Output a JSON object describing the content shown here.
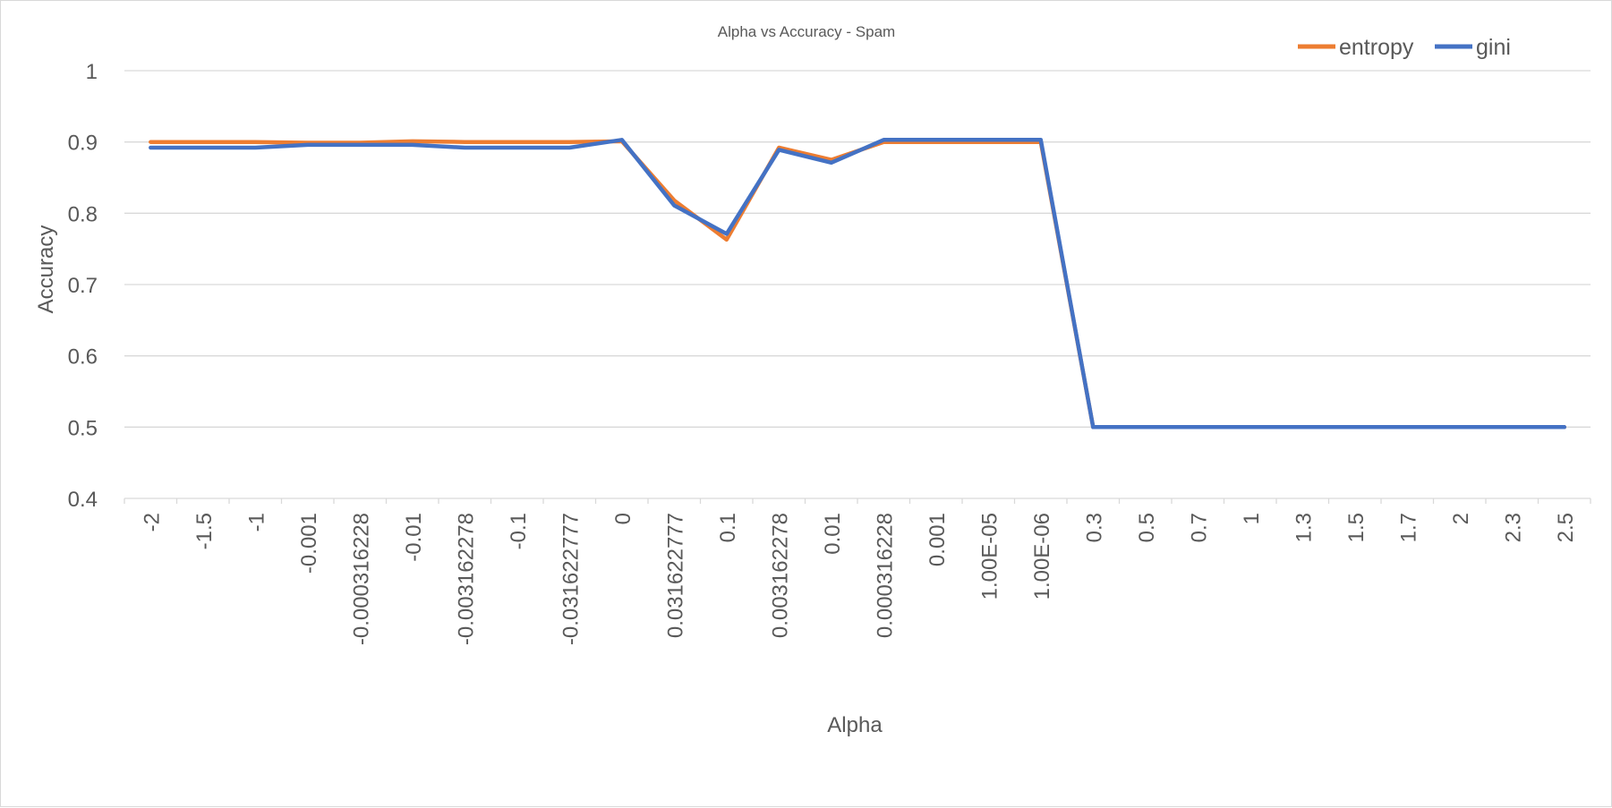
{
  "chart_data": {
    "type": "line",
    "title": "Alpha vs Accuracy - Spam",
    "xlabel": "Alpha",
    "ylabel": "Accuracy",
    "ylim": [
      0.4,
      1
    ],
    "yticks": [
      "0.4",
      "0.5",
      "0.6",
      "0.7",
      "0.8",
      "0.9",
      "1"
    ],
    "grid": true,
    "legend_position": "top-right",
    "categories": [
      "-2",
      "-1.5",
      "-1",
      "-0.001",
      "-0.000316228",
      "-0.01",
      "-0.003162278",
      "-0.1",
      "-0.031622777",
      "0",
      "0.031622777",
      "0.1",
      "0.003162278",
      "0.01",
      "0.000316228",
      "0.001",
      "1.00E-05",
      "1.00E-06",
      "0.3",
      "0.5",
      "0.7",
      "1",
      "1.3",
      "1.5",
      "1.7",
      "2",
      "2.3",
      "2.5"
    ],
    "series": [
      {
        "name": "entropy",
        "color": "#ED7D31",
        "values": [
          0.9,
          0.9,
          0.9,
          0.899,
          0.899,
          0.901,
          0.9,
          0.9,
          0.9,
          0.901,
          0.818,
          0.763,
          0.892,
          0.875,
          0.9,
          0.9,
          0.9,
          0.9,
          0.5,
          0.5,
          0.5,
          0.5,
          0.5,
          0.5,
          0.5,
          0.5,
          0.5,
          0.5
        ]
      },
      {
        "name": "gini",
        "color": "#4472C4",
        "values": [
          0.892,
          0.892,
          0.892,
          0.896,
          0.896,
          0.896,
          0.892,
          0.892,
          0.892,
          0.903,
          0.811,
          0.771,
          0.889,
          0.871,
          0.903,
          0.903,
          0.903,
          0.903,
          0.5,
          0.5,
          0.5,
          0.5,
          0.5,
          0.5,
          0.5,
          0.5,
          0.5,
          0.5
        ]
      }
    ]
  }
}
